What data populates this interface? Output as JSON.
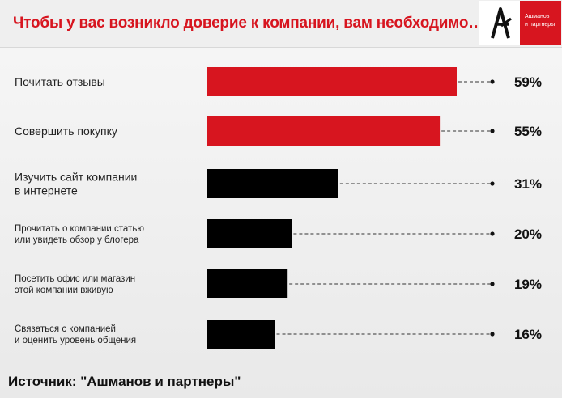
{
  "header": {
    "title": "Чтобы у вас возникло доверие к компании, вам необходимо…",
    "logo": {
      "line1": "Ашманов",
      "line2": "и партнеры"
    }
  },
  "footer": {
    "source": "Источник: \"Ашманов и партнеры\""
  },
  "colors": {
    "accent": "#d7151f",
    "bar_dark": "#000000"
  },
  "chart_data": {
    "type": "bar",
    "orientation": "horizontal",
    "value_suffix": "%",
    "categories": [
      [
        "Почитать отзывы"
      ],
      [
        "Совершить покупку"
      ],
      [
        "Изучить сайт компании",
        "в интернете"
      ],
      [
        "Прочитать о компании статью",
        "или увидеть обзор у блогера"
      ],
      [
        "Посетить офис или магазин",
        "этой компании вживую"
      ],
      [
        "Связаться с компанией",
        "и оценить уровень общения"
      ]
    ],
    "values": [
      59,
      55,
      31,
      20,
      19,
      16
    ],
    "value_labels": [
      "59%",
      "55%",
      "31%",
      "20%",
      "19%",
      "16%"
    ],
    "bar_colors": [
      "#d7151f",
      "#d7151f",
      "#000000",
      "#000000",
      "#000000",
      "#000000"
    ],
    "xlim": [
      0,
      100
    ],
    "grid": false,
    "legend": "none"
  }
}
